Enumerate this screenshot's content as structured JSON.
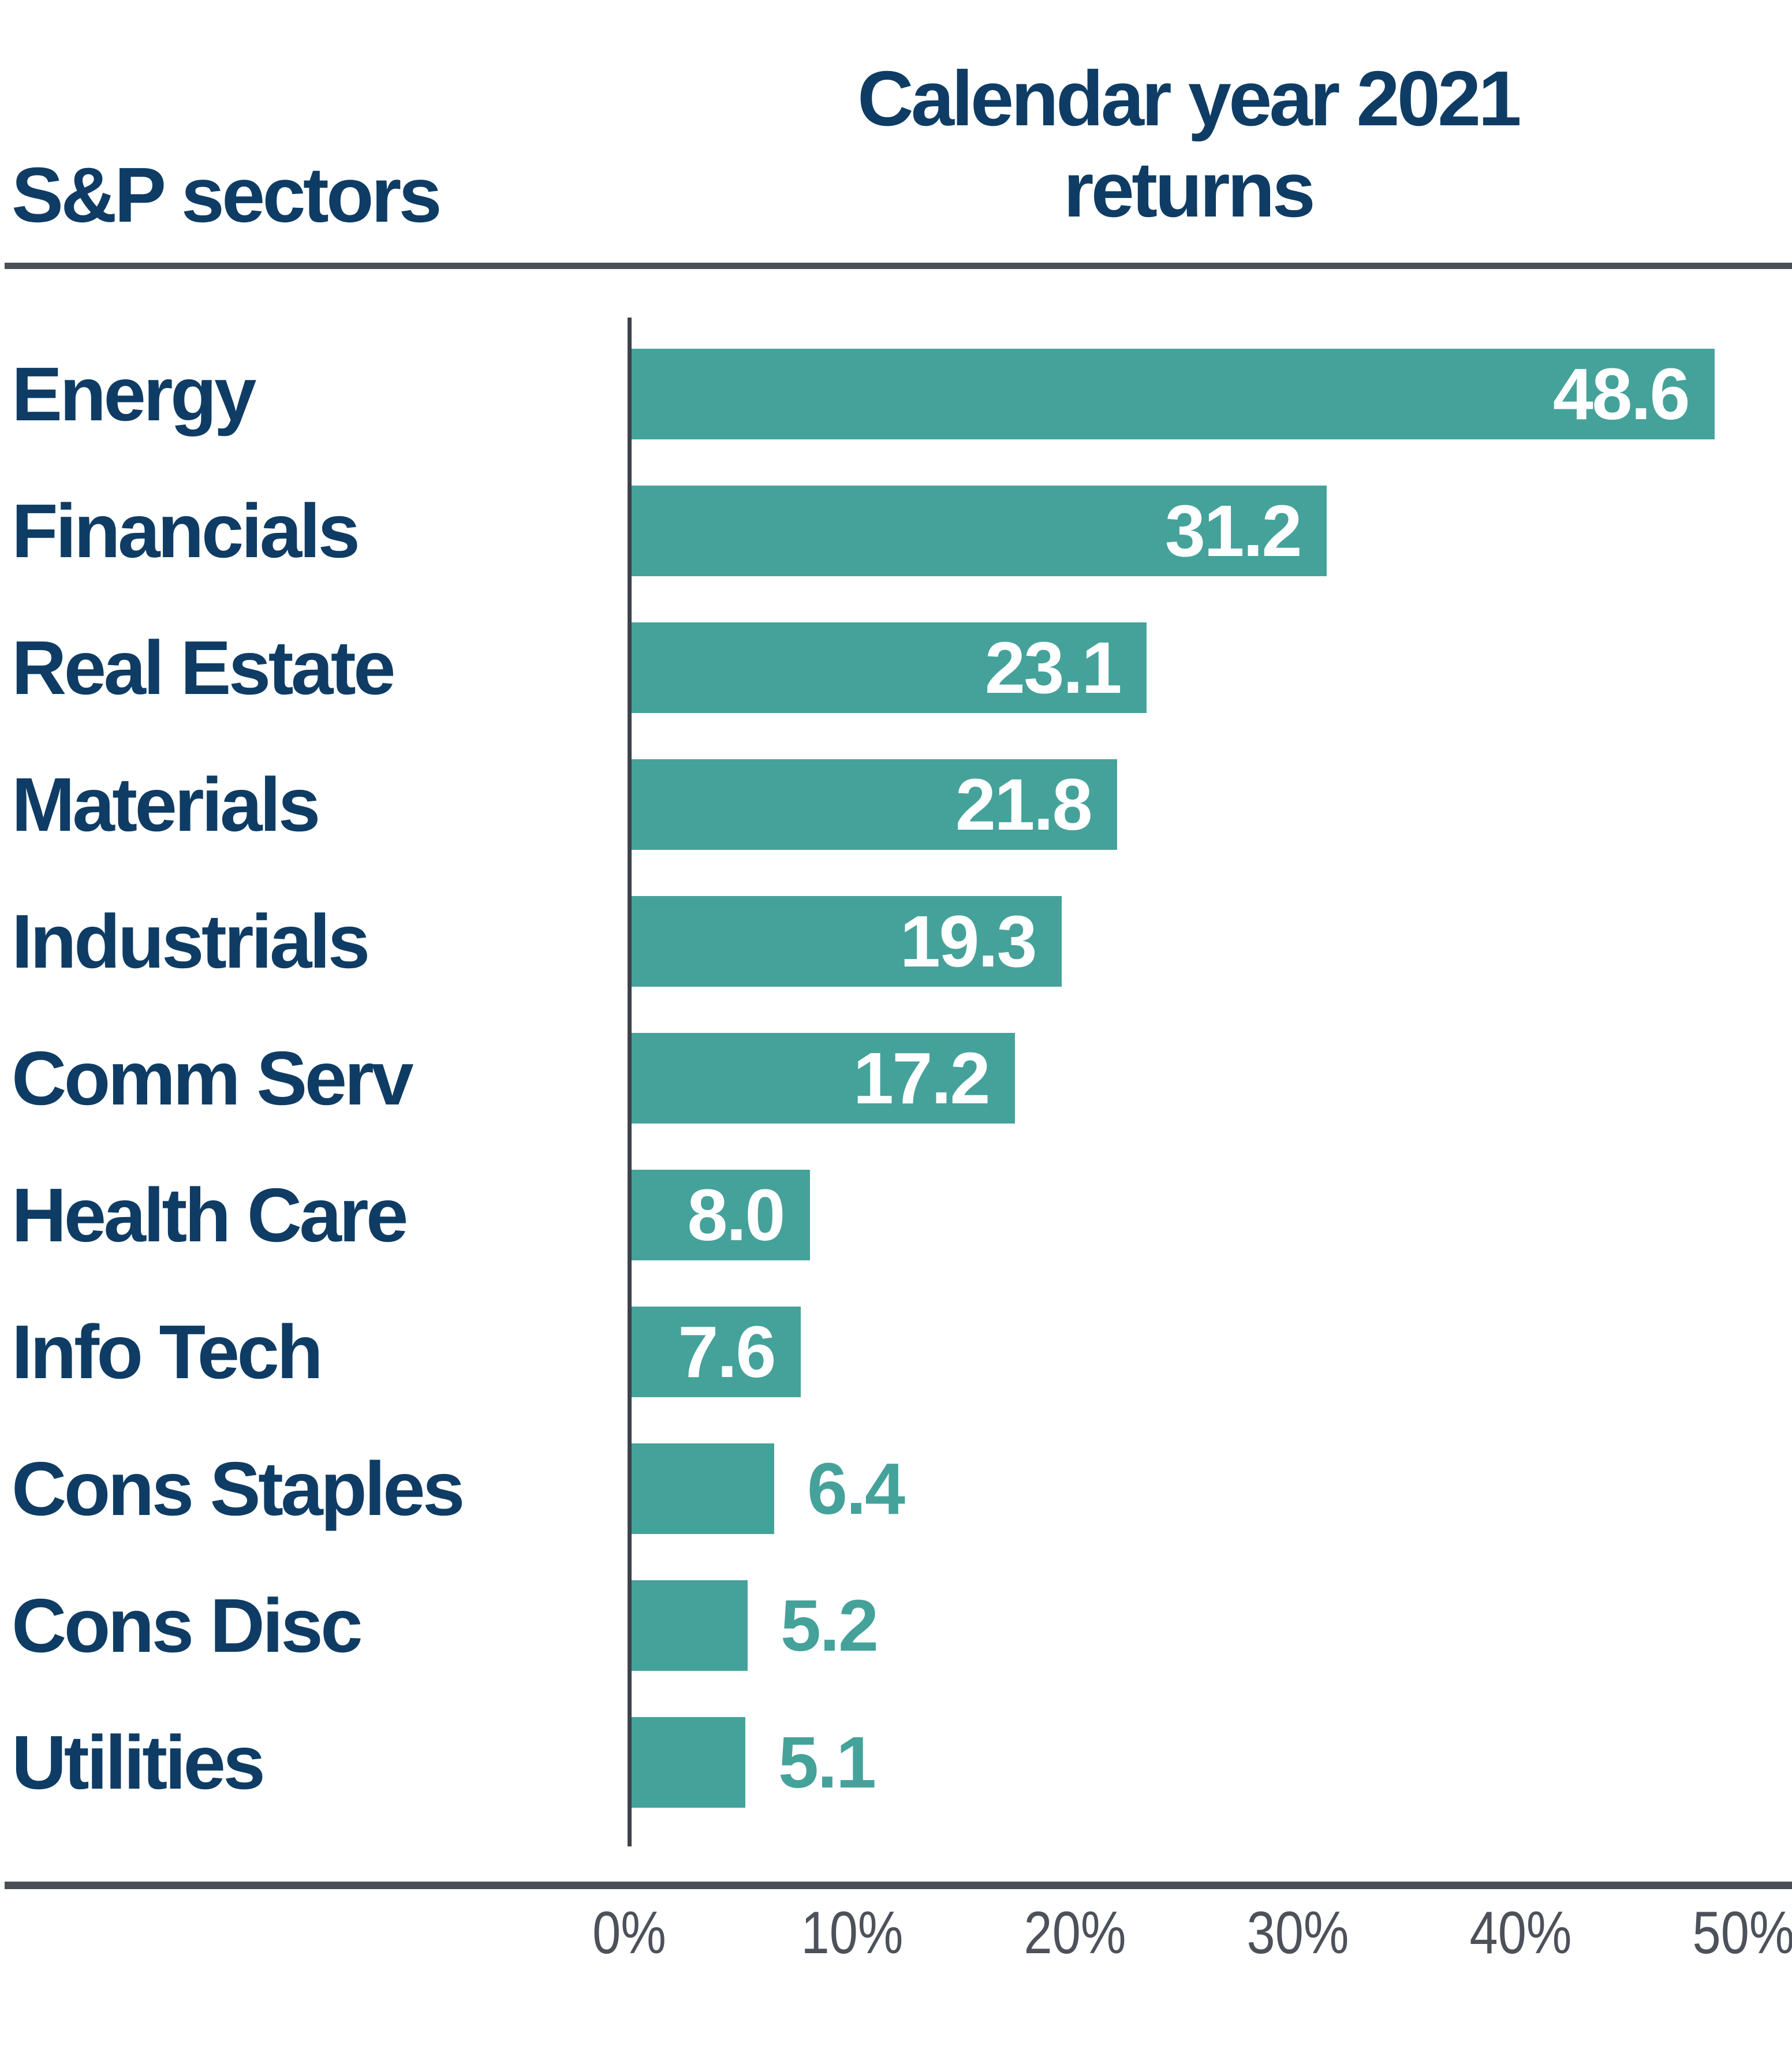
{
  "header": {
    "left_header": "S&P sectors",
    "title_line1": "Calendar year 2021",
    "title_line2": "returns"
  },
  "chart_data": {
    "type": "bar",
    "orientation": "horizontal",
    "title": "Calendar year 2021 returns",
    "column_header": "S&P sectors",
    "categories": [
      "Energy",
      "Financials",
      "Real Estate",
      "Materials",
      "Industrials",
      "Comm Serv",
      "Health Care",
      "Info Tech",
      "Cons Staples",
      "Cons Disc",
      "Utilities"
    ],
    "values": [
      48.6,
      31.2,
      23.1,
      21.8,
      19.3,
      17.2,
      8.0,
      7.6,
      6.4,
      5.2,
      5.1
    ],
    "value_labels": [
      "48.6",
      "31.2",
      "23.1",
      "21.8",
      "19.3",
      "17.2",
      "8.0",
      "7.6",
      "6.4",
      "5.2",
      "5.1"
    ],
    "x_ticks": [
      "0%",
      "10%",
      "20%",
      "30%",
      "40%",
      "50%"
    ],
    "x_tick_values": [
      0,
      10,
      20,
      30,
      40,
      50
    ],
    "xlim": [
      0,
      50
    ],
    "unit": "percent",
    "grid": "off",
    "legend": "none",
    "colors": {
      "bar": "#45A29A",
      "value_label_inside": "#FFFFFF",
      "value_label_outside": "#45A29A",
      "sector_label": "#0E3C64",
      "title": "#0E3C64",
      "axis_line": "#3D424B",
      "divider": "#4A4E55",
      "tick_label": "#4C515A"
    }
  }
}
